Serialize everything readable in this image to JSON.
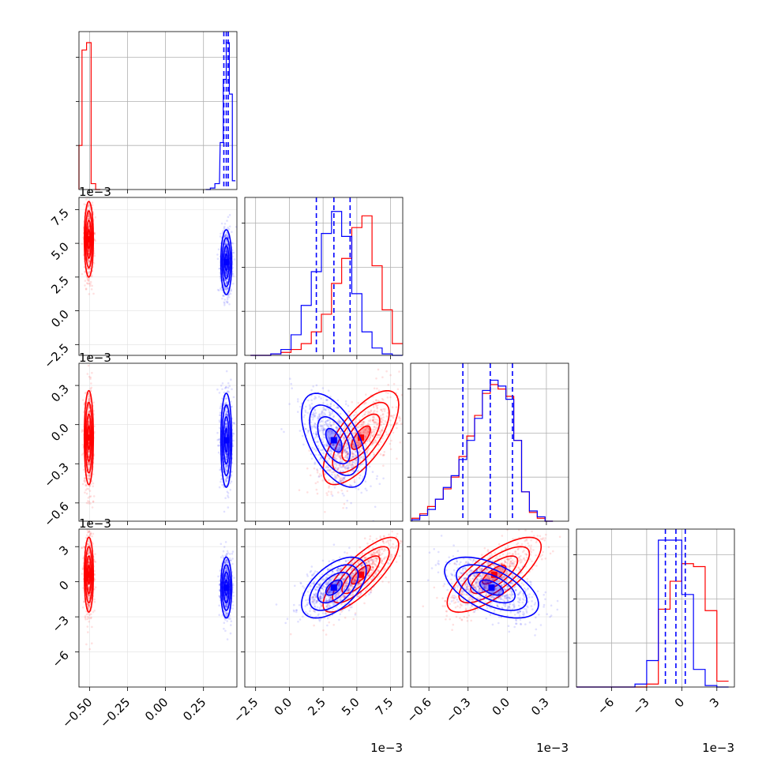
{
  "chart_data": {
    "type": "corner",
    "n_parameters": 4,
    "series": [
      {
        "name": "",
        "color": "#0000ff",
        "style": "step-histogram-and-contours",
        "quantile_lines": "dashed"
      },
      {
        "name": "",
        "color": "#ff0000",
        "style": "step-histogram-and-contours"
      }
    ],
    "params": [
      {
        "range": [
          -0.57,
          0.47
        ],
        "ticks": [
          -0.5,
          -0.25,
          0.0,
          0.25
        ],
        "tick_labels": [
          "−0.50",
          "−0.25",
          "0.00",
          "0.25"
        ],
        "exponent": ""
      },
      {
        "range": [
          -3.3,
          8.4
        ],
        "ticks": [
          -2.5,
          0.0,
          2.5,
          5.0,
          7.5
        ],
        "tick_labels": [
          "−2.5",
          "0.0",
          "2.5",
          "5.0",
          "7.5"
        ],
        "exponent": "1e−3"
      },
      {
        "range": [
          -0.74,
          0.47
        ],
        "ticks": [
          -0.6,
          -0.3,
          0.0,
          0.3
        ],
        "tick_labels": [
          "−0.6",
          "−0.3",
          "0.0",
          "0.3"
        ],
        "exponent": "1e−3"
      },
      {
        "range": [
          -9.0,
          4.5
        ],
        "ticks": [
          -6,
          -3,
          0,
          3
        ],
        "tick_labels": [
          "−6",
          "−3",
          "0",
          "3"
        ],
        "exponent": "1e−3"
      }
    ],
    "histograms": [
      {
        "param": 0,
        "blue": {
          "centers": [
            0.28,
            0.31,
            0.34,
            0.37,
            0.39,
            0.41,
            0.43,
            0.45
          ],
          "heights": [
            0.0,
            0.01,
            0.04,
            0.32,
            0.75,
            1.0,
            0.65,
            0.06
          ]
        },
        "red": {
          "centers": [
            -0.565,
            -0.535,
            -0.505,
            -0.475,
            -0.445
          ],
          "heights": [
            0.3,
            0.95,
            1.0,
            0.04,
            0.0
          ]
        },
        "quantiles_blue": [
          0.384,
          0.4,
          0.413
        ]
      },
      {
        "param": 1,
        "blue": {
          "centers": [
            -2.5,
            -1.75,
            -1.0,
            -0.25,
            0.5,
            1.25,
            2.0,
            2.75,
            3.5,
            4.25,
            5.0,
            5.75,
            6.5,
            7.25,
            8.0
          ],
          "heights": [
            0.0,
            0.0,
            0.01,
            0.04,
            0.14,
            0.34,
            0.57,
            0.83,
            0.98,
            0.81,
            0.42,
            0.16,
            0.05,
            0.01,
            0.0
          ]
        },
        "red": {
          "centers": [
            -2.5,
            -1.75,
            -1.0,
            -0.25,
            0.5,
            1.25,
            2.0,
            2.75,
            3.5,
            4.25,
            5.0,
            5.75,
            6.5,
            7.25,
            8.0
          ],
          "heights": [
            0.0,
            0.0,
            0.01,
            0.02,
            0.04,
            0.08,
            0.16,
            0.28,
            0.49,
            0.66,
            0.87,
            0.95,
            0.61,
            0.31,
            0.08
          ]
        },
        "quantiles_blue": [
          2.0,
          3.3,
          4.5
        ]
      },
      {
        "param": 2,
        "blue": {
          "centers": [
            -0.7,
            -0.64,
            -0.58,
            -0.52,
            -0.46,
            -0.4,
            -0.34,
            -0.28,
            -0.22,
            -0.16,
            -0.1,
            -0.04,
            0.02,
            0.08,
            0.14,
            0.2,
            0.26,
            0.32
          ],
          "heights": [
            0.01,
            0.04,
            0.08,
            0.15,
            0.23,
            0.31,
            0.42,
            0.55,
            0.7,
            0.89,
            0.96,
            0.92,
            0.83,
            0.55,
            0.2,
            0.07,
            0.03,
            0.0
          ]
        },
        "red": {
          "centers": [
            -0.7,
            -0.64,
            -0.58,
            -0.52,
            -0.46,
            -0.4,
            -0.34,
            -0.28,
            -0.22,
            -0.16,
            -0.1,
            -0.04,
            0.02,
            0.08,
            0.14,
            0.2,
            0.26,
            0.32
          ],
          "heights": [
            0.02,
            0.05,
            0.1,
            0.15,
            0.22,
            0.3,
            0.44,
            0.58,
            0.72,
            0.87,
            0.93,
            0.9,
            0.85,
            0.55,
            0.2,
            0.06,
            0.02,
            0.0
          ]
        },
        "quantiles_blue": [
          -0.34,
          -0.13,
          0.04
        ]
      },
      {
        "param": 3,
        "blue": {
          "centers": [
            -8.5,
            -6.5,
            -4.5,
            -3.5,
            -2.5,
            -1.5,
            -0.5,
            0.5,
            1.5,
            2.5,
            3.5
          ],
          "heights": [
            0.0,
            0.0,
            0.0,
            0.02,
            0.18,
            1.0,
            1.0,
            0.63,
            0.12,
            0.01,
            0.0
          ]
        },
        "red": {
          "centers": [
            -8.5,
            -6.5,
            -4.5,
            -3.5,
            -2.5,
            -1.5,
            -0.5,
            0.5,
            1.5,
            2.5,
            3.5
          ],
          "heights": [
            0.0,
            0.0,
            0.0,
            0.0,
            0.02,
            0.53,
            0.72,
            0.84,
            0.82,
            0.52,
            0.04
          ]
        },
        "quantiles_blue": [
          -1.4,
          -0.5,
          0.3
        ]
      }
    ],
    "pairs": [
      {
        "x": 1,
        "y": 0,
        "blue": {
          "mean": [
            0.4,
            3.6
          ],
          "sd": [
            0.018,
            1.2
          ],
          "corr": 0.0
        },
        "red": {
          "mean": [
            -0.505,
            5.3
          ],
          "sd": [
            0.015,
            1.4
          ],
          "corr": 0.0
        }
      },
      {
        "x": 2,
        "y": 0,
        "blue": {
          "mean": [
            0.4,
            -0.12
          ],
          "sd": [
            0.018,
            0.18
          ],
          "corr": 0.0
        },
        "red": {
          "mean": [
            -0.505,
            -0.1
          ],
          "sd": [
            0.015,
            0.18
          ],
          "corr": 0.0
        }
      },
      {
        "x": 2,
        "y": 1,
        "blue": {
          "mean": [
            3.3,
            -0.12
          ],
          "sd": [
            1.2,
            0.18
          ],
          "corr": -0.55
        },
        "red": {
          "mean": [
            5.3,
            -0.1
          ],
          "sd": [
            1.4,
            0.18
          ],
          "corr": 0.7
        }
      },
      {
        "x": 3,
        "y": 0,
        "blue": {
          "mean": [
            0.4,
            -0.5
          ],
          "sd": [
            0.018,
            1.3
          ],
          "corr": 0.0
        },
        "red": {
          "mean": [
            -0.505,
            0.6
          ],
          "sd": [
            0.015,
            1.6
          ],
          "corr": 0.0
        }
      },
      {
        "x": 3,
        "y": 1,
        "blue": {
          "mean": [
            3.3,
            -0.5
          ],
          "sd": [
            1.2,
            1.3
          ],
          "corr": 0.55
        },
        "red": {
          "mean": [
            5.3,
            0.6
          ],
          "sd": [
            1.4,
            1.6
          ],
          "corr": 0.8
        }
      },
      {
        "x": 3,
        "y": 2,
        "blue": {
          "mean": [
            -0.12,
            -0.5
          ],
          "sd": [
            0.18,
            1.3
          ],
          "corr": -0.55
        },
        "red": {
          "mean": [
            -0.1,
            0.6
          ],
          "sd": [
            0.18,
            1.6
          ],
          "corr": 0.75
        }
      }
    ]
  }
}
